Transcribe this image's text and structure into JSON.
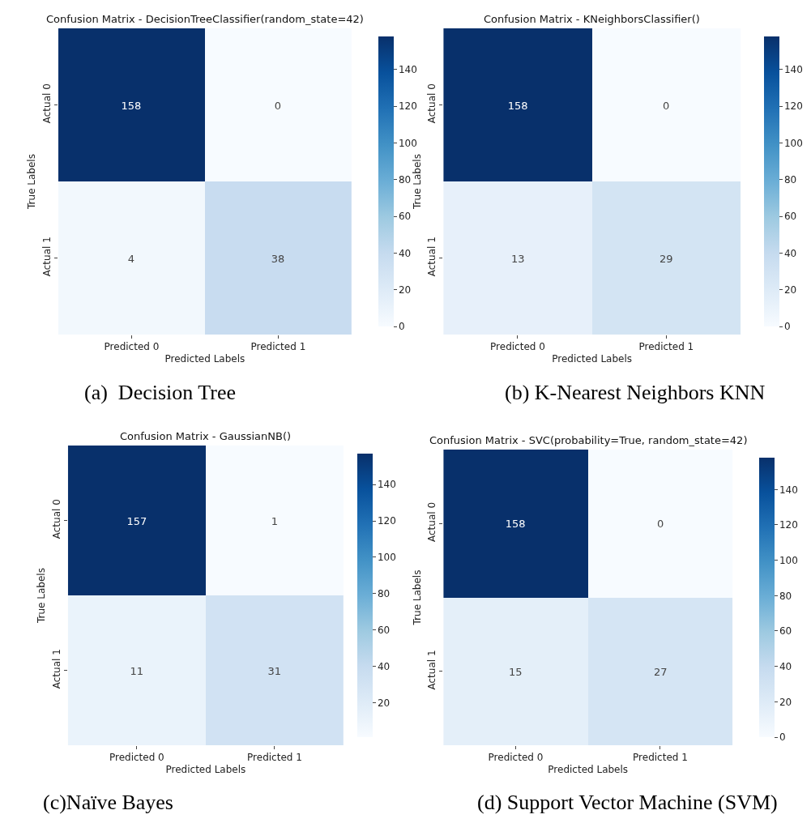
{
  "chart_data": [
    {
      "type": "heatmap",
      "title": "Confusion Matrix - DecisionTreeClassifier(random_state=42)",
      "xlabel": "Predicted Labels",
      "ylabel": "True Labels",
      "categories": [
        "Predicted 0",
        "Predicted 1"
      ],
      "y_categories": [
        "Actual 0",
        "Actual 1"
      ],
      "cells": [
        [
          158,
          0
        ],
        [
          4,
          38
        ]
      ],
      "clim": [
        0,
        158
      ],
      "cticks": [
        0,
        20,
        40,
        60,
        80,
        100,
        120,
        140
      ],
      "data_labels": true,
      "annotations": [
        "(a)  Decision Tree"
      ]
    },
    {
      "type": "heatmap",
      "title": "Confusion Matrix - KNeighborsClassifier()",
      "xlabel": "Predicted Labels",
      "ylabel": "True Labels",
      "categories": [
        "Predicted 0",
        "Predicted 1"
      ],
      "y_categories": [
        "Actual 0",
        "Actual 1"
      ],
      "cells": [
        [
          158,
          0
        ],
        [
          13,
          29
        ]
      ],
      "clim": [
        0,
        158
      ],
      "cticks": [
        0,
        20,
        40,
        60,
        80,
        100,
        120,
        140
      ],
      "data_labels": true,
      "annotations": [
        "(b) K-Nearest Neighbors KNN"
      ]
    },
    {
      "type": "heatmap",
      "title": "Confusion Matrix - GaussianNB()",
      "xlabel": "Predicted Labels",
      "ylabel": "True Labels",
      "categories": [
        "Predicted 0",
        "Predicted 1"
      ],
      "y_categories": [
        "Actual 0",
        "Actual 1"
      ],
      "cells": [
        [
          157,
          1
        ],
        [
          11,
          31
        ]
      ],
      "clim": [
        1,
        157
      ],
      "cticks": [
        20,
        40,
        60,
        80,
        100,
        120,
        140
      ],
      "data_labels": true,
      "annotations": [
        "(c)Naïve Bayes"
      ]
    },
    {
      "type": "heatmap",
      "title": "Confusion Matrix - SVC(probability=True, random_state=42)",
      "xlabel": "Predicted Labels",
      "ylabel": "True Labels",
      "categories": [
        "Predicted 0",
        "Predicted 1"
      ],
      "y_categories": [
        "Actual 0",
        "Actual 1"
      ],
      "cells": [
        [
          158,
          0
        ],
        [
          15,
          27
        ]
      ],
      "clim": [
        0,
        158
      ],
      "cticks": [
        0,
        20,
        40,
        60,
        80,
        100,
        120,
        140
      ],
      "data_labels": true,
      "annotations": [
        "(d) Support Vector Machine (SVM)"
      ]
    }
  ]
}
